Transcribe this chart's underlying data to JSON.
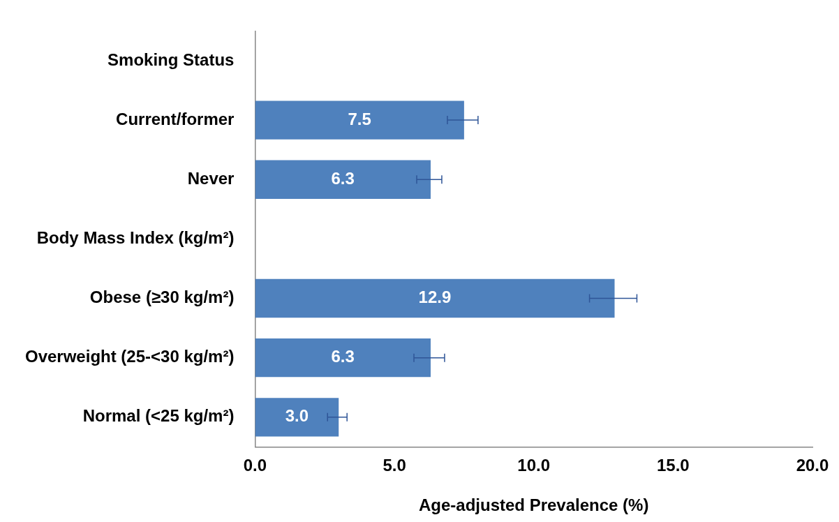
{
  "chart_data": {
    "type": "bar",
    "orientation": "horizontal",
    "xlabel": "Age-adjusted Prevalence (%)",
    "categories": [
      "Smoking Status",
      "Current/former",
      "Never",
      "Body Mass Index (kg/m²)",
      "Obese (≥30 kg/m²)",
      "Overweight (25-<30 kg/m²)",
      "Normal (<25 kg/m²)"
    ],
    "values": [
      null,
      7.5,
      6.3,
      null,
      12.9,
      6.3,
      3.0
    ],
    "errors": [
      null,
      [
        6.9,
        8.0
      ],
      [
        5.8,
        6.7
      ],
      null,
      [
        12.0,
        13.7
      ],
      [
        5.7,
        6.8
      ],
      [
        2.6,
        3.3
      ]
    ],
    "color": "#4f81bd",
    "xlim": [
      0,
      20
    ],
    "xticks": [
      {
        "value": 0,
        "label": "0.0"
      },
      {
        "value": 5,
        "label": "5.0"
      },
      {
        "value": 10,
        "label": "10.0"
      },
      {
        "value": 15,
        "label": "15.0"
      },
      {
        "value": 20,
        "label": "20.0"
      }
    ],
    "value_labels": [
      null,
      "7.5",
      "6.3",
      null,
      "12.9",
      "6.3",
      "3.0"
    ],
    "grid": false,
    "legend": false
  }
}
